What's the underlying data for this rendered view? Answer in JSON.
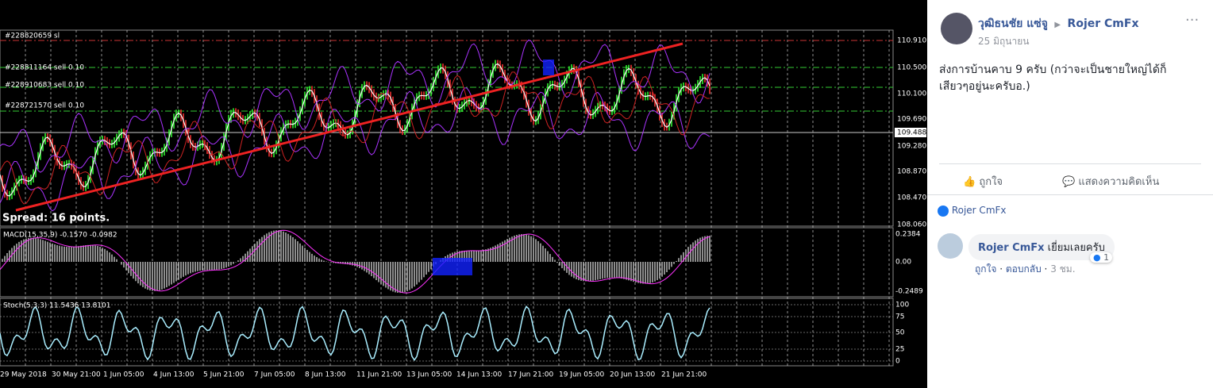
{
  "chart_image": {
    "orders": [
      "#228820659 sl",
      "#228811164 sell 0.10",
      "#228910683 sell 0.10",
      "#228721570 sell 0.10"
    ],
    "price_labels": [
      "110.910",
      "110.500",
      "110.100",
      "109.690",
      "109.488",
      "109.280",
      "108.870",
      "108.470",
      "108.060"
    ],
    "spread": "Spread: 16 points.",
    "macd_label": "MACD(15,35,9) -0.1570 -0.0982",
    "macd_scale": [
      "0.2384",
      "0.00",
      "-0.2489"
    ],
    "stoch_label": "Stoch(5,3,3) 11.5436 13.8101",
    "stoch_scale": [
      "100",
      "75",
      "50",
      "25",
      "0"
    ],
    "dates": [
      "29 May 2018",
      "30 May 21:00",
      "1 Jun 05:00",
      "4 Jun 13:00",
      "5 Jun 21:00",
      "7 Jun 05:00",
      "8 Jun 13:00",
      "11 Jun 21:00",
      "13 Jun 05:00",
      "14 Jun 13:00",
      "17 Jun 21:00",
      "19 Jun 05:00",
      "20 Jun 13:00",
      "21 Jun 21:00"
    ]
  },
  "post": {
    "author": "วุฒิธนชัย แซ่จู",
    "page": "Rojer CmFx",
    "time": "25 มิถุนายน",
    "text": "ส่งการบ้านคาบ 9 ครับ (กว่าจะเป็นชายใหญ่ได้ก็เสียวๆอยู่นะครับอ.)",
    "actions": [
      "ถูกใจ",
      "แสดงความคิดเห็น"
    ],
    "reactions": "Rojer CmFx",
    "comment": {
      "author": "Rojer CmFx",
      "text": "เยี่ยมเลยครับ",
      "like": "ถูกใจ",
      "reply": "ตอบกลับ",
      "time": "3 ชม.",
      "count": 1
    }
  }
}
